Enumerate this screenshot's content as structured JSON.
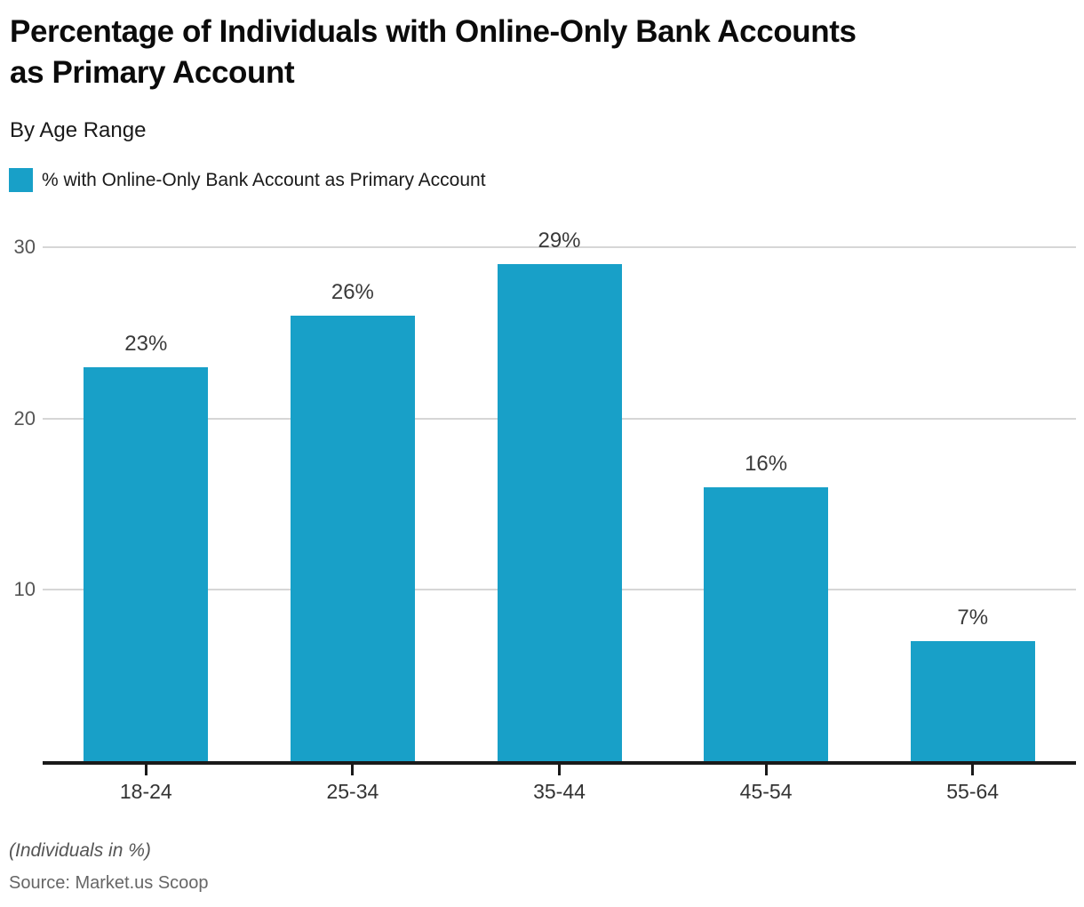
{
  "header": {
    "title_line1": "Percentage of Individuals with Online-Only Bank Accounts",
    "title_line2": "as Primary Account",
    "subtitle": "By Age Range"
  },
  "legend": {
    "label": "% with Online-Only Bank Account as Primary Account"
  },
  "footer": {
    "note": "(Individuals in %)",
    "source": "Source: Market.us Scoop"
  },
  "colors": {
    "bar": "#18a0c8",
    "axis": "#1a1a1a",
    "gridline": "#d6d6d6",
    "y_tick_label": "#555555",
    "x_tick_label": "#333333",
    "value_label": "#3a3a3a"
  },
  "chart_data": {
    "type": "bar",
    "title": "Percentage of Individuals with Online-Only Bank Accounts as Primary Account",
    "subtitle": "By Age Range",
    "categories": [
      "18-24",
      "25-34",
      "35-44",
      "45-54",
      "55-64"
    ],
    "series": [
      {
        "name": "% with Online-Only Bank Account as Primary Account",
        "values": [
          23,
          26,
          29,
          16,
          7
        ]
      }
    ],
    "value_labels": [
      "23%",
      "26%",
      "29%",
      "16%",
      "7%"
    ],
    "yticks": [
      10,
      20,
      30
    ],
    "ylim": [
      0,
      31.5
    ],
    "grid": "horizontal",
    "legend_position": "top-left",
    "note": "(Individuals in %)",
    "source": "Source: Market.us Scoop"
  }
}
